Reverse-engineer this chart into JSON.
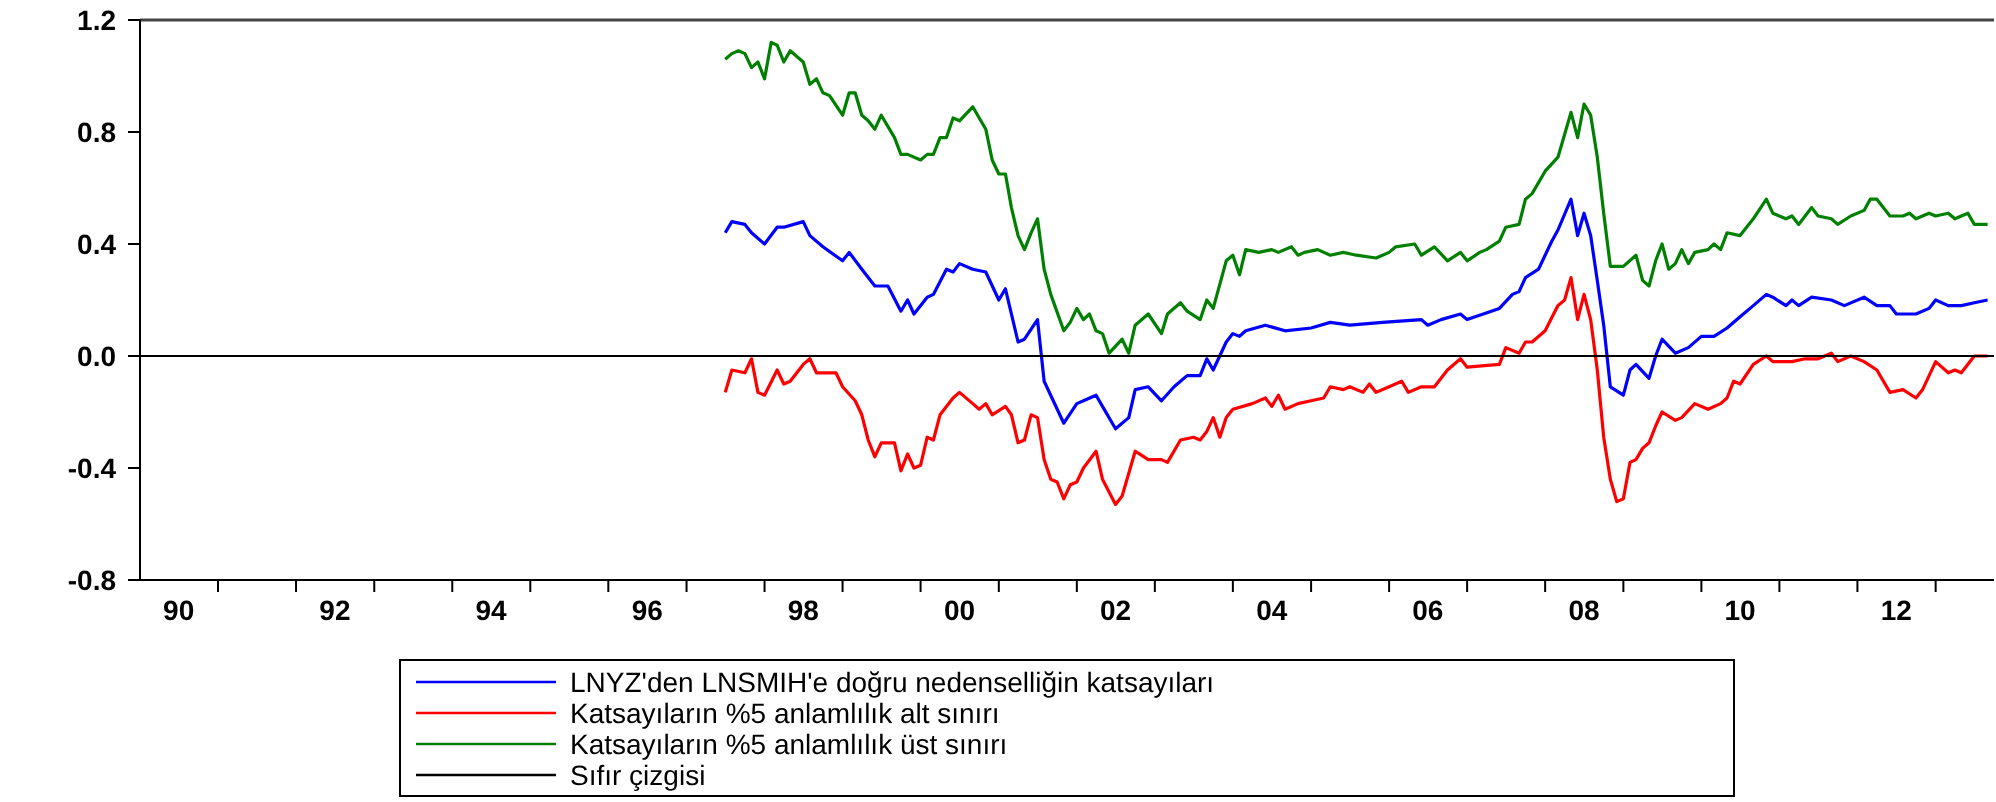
{
  "chart_data": {
    "type": "line",
    "xlim": [
      "1990-01",
      "2013-10"
    ],
    "ylim": [
      -0.8,
      1.2
    ],
    "yticks": [
      {
        "value": -0.8,
        "label": "-0.8"
      },
      {
        "value": -0.4,
        "label": "-0.4"
      },
      {
        "value": 0,
        "label": "0.0"
      },
      {
        "value": 0.4,
        "label": "0.4"
      },
      {
        "value": 0.8,
        "label": "0.8"
      },
      {
        "value": 1.2,
        "label": "1.2"
      }
    ],
    "xticks": [
      {
        "value": "1990-07-01",
        "label": "90"
      },
      {
        "value": "1992-07-01",
        "label": "92"
      },
      {
        "value": "1994-07-01",
        "label": "94"
      },
      {
        "value": "1996-07-01",
        "label": "96"
      },
      {
        "value": "1998-07-01",
        "label": "98"
      },
      {
        "value": "2000-07-01",
        "label": "00"
      },
      {
        "value": "2002-07-01",
        "label": "02"
      },
      {
        "value": "2004-07-01",
        "label": "04"
      },
      {
        "value": "2006-07-01",
        "label": "06"
      },
      {
        "value": "2008-07-01",
        "label": "08"
      },
      {
        "value": "2010-07-01",
        "label": "10"
      },
      {
        "value": "2012-07-01",
        "label": "12"
      },
      {
        "value": "1991",
        "label": null
      },
      {
        "value": "1992",
        "label": null
      },
      {
        "value": "1993",
        "label": null
      },
      {
        "value": "1994",
        "label": null
      },
      {
        "value": "1995",
        "label": null
      },
      {
        "value": "1996",
        "label": null
      },
      {
        "value": "1997",
        "label": null
      },
      {
        "value": "1998",
        "label": null
      },
      {
        "value": "1999",
        "label": null
      },
      {
        "value": "2000",
        "label": null
      },
      {
        "value": "2001",
        "label": null
      },
      {
        "value": "2002",
        "label": null
      },
      {
        "value": "2003",
        "label": null
      },
      {
        "value": "2004",
        "label": null
      },
      {
        "value": "2005",
        "label": null
      },
      {
        "value": "2006",
        "label": null
      },
      {
        "value": "2007",
        "label": null
      },
      {
        "value": "2008",
        "label": null
      },
      {
        "value": "2009",
        "label": null
      },
      {
        "value": "2010",
        "label": null
      },
      {
        "value": "2011",
        "label": null
      },
      {
        "value": "2012",
        "label": null
      },
      {
        "value": "2013",
        "label": null
      }
    ],
    "grid": false,
    "legend": "bottom",
    "series": [
      {
        "name": "LNYZ'den LNSMIH'e doğru nedenselliğin katsayıları",
        "color": "#0000ff",
        "x": [
          "1997-07",
          "1997-08",
          "1997-10",
          "1997-11",
          "1998-01",
          "1998-03",
          "1998-04",
          "1998-07",
          "1998-08",
          "1998-10",
          "1999-01",
          "1999-02",
          "1999-04",
          "1999-06",
          "1999-08",
          "1999-10",
          "1999-11",
          "1999-12",
          "2000-02",
          "2000-03",
          "2000-05",
          "2000-06",
          "2000-07",
          "2000-09",
          "2000-11",
          "2001-01",
          "2001-02",
          "2001-04",
          "2001-05",
          "2001-07",
          "2001-08",
          "2001-11",
          "2002-01",
          "2002-02",
          "2002-04",
          "2002-05",
          "2002-07",
          "2002-09",
          "2002-10",
          "2002-12",
          "2003-02",
          "2003-04",
          "2003-06",
          "2003-08",
          "2003-09",
          "2003-10",
          "2003-12",
          "2004-01",
          "2004-02",
          "2004-03",
          "2004-06",
          "2004-09",
          "2005-01",
          "2005-04",
          "2005-07",
          "2005-12",
          "2006-06",
          "2006-07",
          "2006-09",
          "2006-12",
          "2007-01",
          "2007-06",
          "2007-08",
          "2007-09",
          "2007-10",
          "2007-12",
          "2008-02",
          "2008-03",
          "2008-05",
          "2008-06",
          "2008-07",
          "2008-08",
          "2008-09",
          "2008-10",
          "2008-11",
          "2009-01",
          "2009-02",
          "2009-03",
          "2009-05",
          "2009-06",
          "2009-07",
          "2009-09",
          "2009-11",
          "2010-01",
          "2010-03",
          "2010-05",
          "2010-07",
          "2010-09",
          "2010-11",
          "2010-12",
          "2011-02",
          "2011-03",
          "2011-04",
          "2011-06",
          "2011-09",
          "2011-11",
          "2012-02",
          "2012-04",
          "2012-06",
          "2012-07",
          "2012-10",
          "2012-12",
          "2013-01",
          "2013-03",
          "2013-05",
          "2013-07",
          "2013-09"
        ],
        "values": [
          0.44,
          0.48,
          0.47,
          0.44,
          0.4,
          0.46,
          0.46,
          0.48,
          0.43,
          0.39,
          0.34,
          0.37,
          0.31,
          0.25,
          0.25,
          0.16,
          0.2,
          0.15,
          0.21,
          0.22,
          0.31,
          0.3,
          0.33,
          0.31,
          0.3,
          0.2,
          0.24,
          0.05,
          0.06,
          0.13,
          -0.09,
          -0.24,
          -0.17,
          -0.16,
          -0.14,
          -0.18,
          -0.26,
          -0.22,
          -0.12,
          -0.11,
          -0.16,
          -0.11,
          -0.07,
          -0.07,
          -0.01,
          -0.05,
          0.05,
          0.08,
          0.07,
          0.09,
          0.11,
          0.09,
          0.1,
          0.12,
          0.11,
          0.12,
          0.13,
          0.11,
          0.13,
          0.15,
          0.13,
          0.17,
          0.22,
          0.23,
          0.28,
          0.31,
          0.41,
          0.45,
          0.56,
          0.43,
          0.51,
          0.43,
          0.27,
          0.11,
          -0.11,
          -0.14,
          -0.05,
          -0.03,
          -0.08,
          0.0,
          0.06,
          0.01,
          0.03,
          0.07,
          0.07,
          0.1,
          0.14,
          0.18,
          0.22,
          0.21,
          0.18,
          0.2,
          0.18,
          0.21,
          0.2,
          0.18,
          0.21,
          0.18,
          0.18,
          0.15,
          0.15,
          0.17,
          0.2,
          0.18,
          0.18,
          0.19,
          0.2
        ]
      },
      {
        "name": "Katsayıların %5 anlamlılık alt sınırı",
        "color": "#ff0000",
        "x": [
          "1997-07",
          "1997-08",
          "1997-10",
          "1997-11",
          "1997-12",
          "1998-01",
          "1998-03",
          "1998-04",
          "1998-05",
          "1998-07",
          "1998-08",
          "1998-09",
          "1998-12",
          "1999-01",
          "1999-03",
          "1999-04",
          "1999-05",
          "1999-06",
          "1999-07",
          "1999-09",
          "1999-10",
          "1999-11",
          "1999-12",
          "2000-01",
          "2000-02",
          "2000-03",
          "2000-04",
          "2000-06",
          "2000-07",
          "2000-09",
          "2000-10",
          "2000-11",
          "2000-12",
          "2001-02",
          "2001-03",
          "2001-04",
          "2001-05",
          "2001-06",
          "2001-07",
          "2001-08",
          "2001-09",
          "2001-10",
          "2001-11",
          "2001-12",
          "2002-01",
          "2002-02",
          "2002-04",
          "2002-05",
          "2002-07",
          "2002-08",
          "2002-10",
          "2002-12",
          "2003-02",
          "2003-03",
          "2003-05",
          "2003-07",
          "2003-08",
          "2003-09",
          "2003-10",
          "2003-11",
          "2003-12",
          "2004-01",
          "2004-04",
          "2004-06",
          "2004-07",
          "2004-08",
          "2004-09",
          "2004-11",
          "2005-01",
          "2005-03",
          "2005-04",
          "2005-06",
          "2005-07",
          "2005-09",
          "2005-10",
          "2005-11",
          "2006-01",
          "2006-03",
          "2006-04",
          "2006-06",
          "2006-08",
          "2006-10",
          "2006-12",
          "2007-01",
          "2007-06",
          "2007-07",
          "2007-09",
          "2007-10",
          "2007-11",
          "2008-01",
          "2008-03",
          "2008-04",
          "2008-05",
          "2008-06",
          "2008-07",
          "2008-08",
          "2008-09",
          "2008-10",
          "2008-11",
          "2008-12",
          "2009-01",
          "2009-02",
          "2009-03",
          "2009-04",
          "2009-05",
          "2009-06",
          "2009-07",
          "2009-09",
          "2009-10",
          "2009-12",
          "2010-02",
          "2010-04",
          "2010-05",
          "2010-06",
          "2010-07",
          "2010-09",
          "2010-11",
          "2010-12",
          "2011-03",
          "2011-05",
          "2011-07",
          "2011-09",
          "2011-10",
          "2011-12",
          "2012-02",
          "2012-04",
          "2012-06",
          "2012-08",
          "2012-10",
          "2012-11",
          "2013-01",
          "2013-03",
          "2013-04",
          "2013-05",
          "2013-07",
          "2013-09"
        ],
        "values": [
          -0.13,
          -0.05,
          -0.06,
          -0.01,
          -0.13,
          -0.14,
          -0.05,
          -0.1,
          -0.09,
          -0.03,
          -0.01,
          -0.06,
          -0.06,
          -0.11,
          -0.16,
          -0.21,
          -0.3,
          -0.36,
          -0.31,
          -0.31,
          -0.41,
          -0.35,
          -0.4,
          -0.39,
          -0.29,
          -0.3,
          -0.21,
          -0.15,
          -0.13,
          -0.17,
          -0.19,
          -0.17,
          -0.21,
          -0.18,
          -0.21,
          -0.31,
          -0.3,
          -0.21,
          -0.22,
          -0.37,
          -0.44,
          -0.45,
          -0.51,
          -0.46,
          -0.45,
          -0.4,
          -0.34,
          -0.44,
          -0.53,
          -0.5,
          -0.34,
          -0.37,
          -0.37,
          -0.38,
          -0.3,
          -0.29,
          -0.3,
          -0.27,
          -0.22,
          -0.29,
          -0.22,
          -0.19,
          -0.17,
          -0.15,
          -0.18,
          -0.14,
          -0.19,
          -0.17,
          -0.16,
          -0.15,
          -0.11,
          -0.12,
          -0.11,
          -0.13,
          -0.1,
          -0.13,
          -0.11,
          -0.09,
          -0.13,
          -0.11,
          -0.11,
          -0.05,
          -0.01,
          -0.04,
          -0.03,
          0.03,
          0.01,
          0.05,
          0.05,
          0.09,
          0.18,
          0.2,
          0.28,
          0.13,
          0.22,
          0.13,
          -0.05,
          -0.29,
          -0.44,
          -0.52,
          -0.51,
          -0.38,
          -0.37,
          -0.33,
          -0.31,
          -0.25,
          -0.2,
          -0.23,
          -0.22,
          -0.17,
          -0.19,
          -0.17,
          -0.15,
          -0.09,
          -0.1,
          -0.03,
          0.0,
          -0.02,
          -0.02,
          -0.01,
          -0.01,
          0.01,
          -0.02,
          0.0,
          -0.02,
          -0.05,
          -0.13,
          -0.12,
          -0.15,
          -0.12,
          -0.02,
          -0.06,
          -0.05,
          -0.06,
          0.0,
          0.0
        ]
      },
      {
        "name": "Katsayıların %5 anlamlılık üst sınırı",
        "color": "#008000",
        "x": [
          "1997-07",
          "1997-08",
          "1997-09",
          "1997-10",
          "1997-11",
          "1997-12",
          "1998-01",
          "1998-02",
          "1998-03",
          "1998-04",
          "1998-05",
          "1998-07",
          "1998-08",
          "1998-09",
          "1998-10",
          "1998-11",
          "1999-01",
          "1999-02",
          "1999-03",
          "1999-04",
          "1999-05",
          "1999-06",
          "1999-07",
          "1999-09",
          "1999-10",
          "1999-11",
          "2000-01",
          "2000-02",
          "2000-03",
          "2000-04",
          "2000-05",
          "2000-06",
          "2000-07",
          "2000-09",
          "2000-11",
          "2000-12",
          "2001-01",
          "2001-02",
          "2001-03",
          "2001-04",
          "2001-05",
          "2001-06",
          "2001-07",
          "2001-08",
          "2001-09",
          "2001-11",
          "2001-12",
          "2002-01",
          "2002-02",
          "2002-03",
          "2002-04",
          "2002-05",
          "2002-06",
          "2002-08",
          "2002-09",
          "2002-10",
          "2002-12",
          "2003-02",
          "2003-03",
          "2003-05",
          "2003-06",
          "2003-08",
          "2003-09",
          "2003-10",
          "2003-12",
          "2004-01",
          "2004-02",
          "2004-03",
          "2004-05",
          "2004-07",
          "2004-08",
          "2004-10",
          "2004-11",
          "2004-12",
          "2005-02",
          "2005-04",
          "2005-06",
          "2005-08",
          "2005-11",
          "2006-01",
          "2006-02",
          "2006-05",
          "2006-06",
          "2006-08",
          "2006-10",
          "2006-12",
          "2007-01",
          "2007-03",
          "2007-04",
          "2007-06",
          "2007-07",
          "2007-09",
          "2007-10",
          "2007-11",
          "2008-01",
          "2008-03",
          "2008-05",
          "2008-06",
          "2008-07",
          "2008-08",
          "2008-09",
          "2008-10",
          "2008-11",
          "2009-01",
          "2009-03",
          "2009-04",
          "2009-05",
          "2009-06",
          "2009-07",
          "2009-08",
          "2009-09",
          "2009-10",
          "2009-11",
          "2009-12",
          "2010-02",
          "2010-03",
          "2010-04",
          "2010-05",
          "2010-07",
          "2010-09",
          "2010-11",
          "2010-12",
          "2011-02",
          "2011-03",
          "2011-04",
          "2011-06",
          "2011-07",
          "2011-09",
          "2011-10",
          "2011-12",
          "2012-02",
          "2012-03",
          "2012-04",
          "2012-06",
          "2012-08",
          "2012-09",
          "2012-10",
          "2012-12",
          "2013-01",
          "2013-03",
          "2013-04",
          "2013-06",
          "2013-07",
          "2013-09"
        ],
        "values": [
          1.06,
          1.08,
          1.09,
          1.08,
          1.03,
          1.05,
          0.99,
          1.12,
          1.11,
          1.05,
          1.09,
          1.05,
          0.97,
          0.99,
          0.94,
          0.93,
          0.86,
          0.94,
          0.94,
          0.86,
          0.84,
          0.81,
          0.86,
          0.78,
          0.72,
          0.72,
          0.7,
          0.72,
          0.72,
          0.78,
          0.78,
          0.85,
          0.84,
          0.89,
          0.81,
          0.7,
          0.65,
          0.65,
          0.53,
          0.43,
          0.38,
          0.44,
          0.49,
          0.31,
          0.22,
          0.09,
          0.12,
          0.17,
          0.13,
          0.15,
          0.09,
          0.08,
          0.01,
          0.06,
          0.01,
          0.11,
          0.15,
          0.08,
          0.15,
          0.19,
          0.16,
          0.13,
          0.2,
          0.17,
          0.34,
          0.36,
          0.29,
          0.38,
          0.37,
          0.38,
          0.37,
          0.39,
          0.36,
          0.37,
          0.38,
          0.36,
          0.37,
          0.36,
          0.35,
          0.37,
          0.39,
          0.4,
          0.36,
          0.39,
          0.34,
          0.37,
          0.34,
          0.37,
          0.38,
          0.41,
          0.46,
          0.47,
          0.56,
          0.58,
          0.66,
          0.71,
          0.87,
          0.78,
          0.9,
          0.86,
          0.71,
          0.51,
          0.32,
          0.32,
          0.36,
          0.27,
          0.25,
          0.34,
          0.4,
          0.31,
          0.33,
          0.38,
          0.33,
          0.37,
          0.38,
          0.4,
          0.38,
          0.44,
          0.43,
          0.49,
          0.56,
          0.51,
          0.49,
          0.5,
          0.47,
          0.53,
          0.5,
          0.49,
          0.47,
          0.5,
          0.52,
          0.56,
          0.56,
          0.5,
          0.5,
          0.51,
          0.49,
          0.51,
          0.5,
          0.51,
          0.49,
          0.51,
          0.47,
          0.47
        ]
      },
      {
        "name": "Sıfır çizgisi",
        "color": "#000000",
        "x": [
          "1990-01",
          "2013-10"
        ],
        "values": [
          0,
          0
        ]
      }
    ]
  }
}
